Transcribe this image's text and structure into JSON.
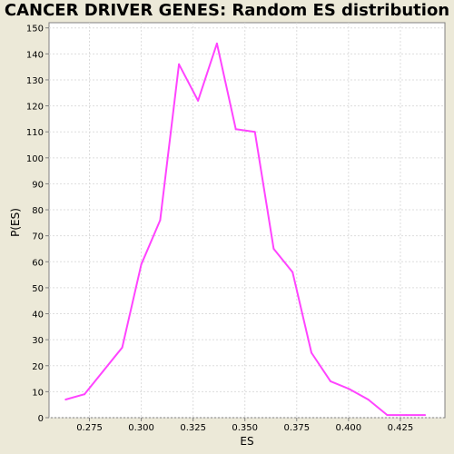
{
  "chart_data": {
    "type": "line",
    "title": "CANCER DRIVER GENES: Random ES distribution",
    "xlabel": "ES",
    "ylabel": "P(ES)",
    "xlim": [
      0.2555,
      0.4465
    ],
    "ylim": [
      0,
      152
    ],
    "x_ticks": [
      0.275,
      0.3,
      0.325,
      0.35,
      0.375,
      0.4,
      0.425
    ],
    "x_tick_labels": [
      "0.275",
      "0.300",
      "0.325",
      "0.350",
      "0.375",
      "0.400",
      "0.425"
    ],
    "y_ticks": [
      0,
      10,
      20,
      30,
      40,
      50,
      60,
      70,
      80,
      90,
      100,
      110,
      120,
      130,
      140,
      150
    ],
    "y_tick_labels": [
      "0",
      "10",
      "20",
      "30",
      "40",
      "50",
      "60",
      "70",
      "80",
      "90",
      "100",
      "110",
      "120",
      "130",
      "140",
      "150"
    ],
    "grid": true,
    "line_color": "#ff44ff",
    "series": [
      {
        "x": [
          0.2635,
          0.2726,
          0.2817,
          0.2908,
          0.3,
          0.3091,
          0.3182,
          0.3274,
          0.3365,
          0.3456,
          0.3548,
          0.3639,
          0.373,
          0.3821,
          0.3913,
          0.4004,
          0.4095,
          0.4187,
          0.4278,
          0.4369
        ],
        "y": [
          7,
          9,
          18,
          27,
          59,
          76,
          136,
          122,
          144,
          111,
          110,
          65,
          56,
          25,
          14,
          11,
          7,
          1,
          1,
          1
        ]
      }
    ]
  }
}
